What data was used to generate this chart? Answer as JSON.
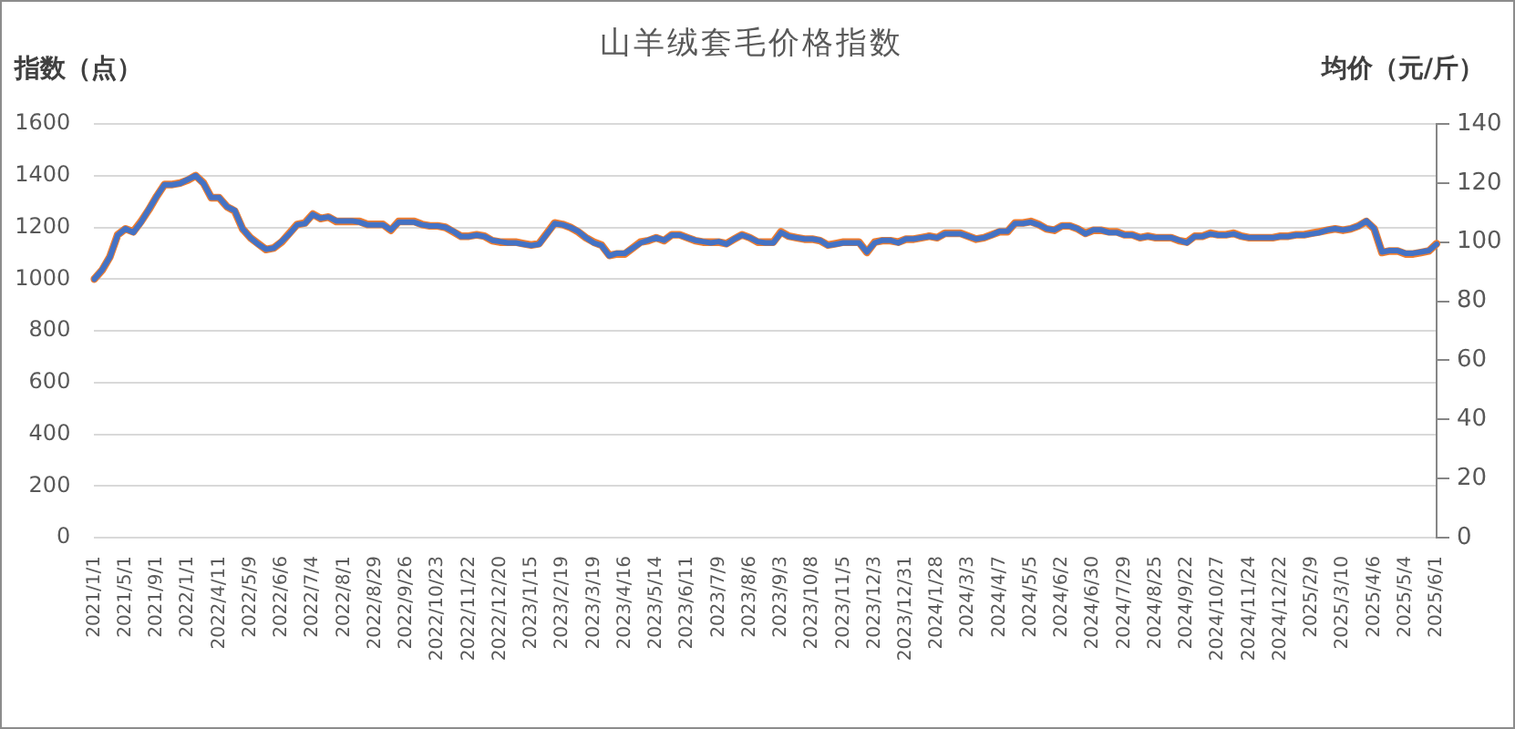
{
  "chart_data": {
    "type": "line",
    "title": "山羊绒套毛价格指数",
    "ylabel": "指数（点）",
    "y2label": "均价（元/斤）",
    "categories": [
      "2021/1/1",
      null,
      null,
      null,
      "2021/5/1",
      null,
      null,
      null,
      "2021/9/1",
      null,
      null,
      null,
      "2022/1/1",
      null,
      null,
      null,
      "2022/4/11",
      null,
      null,
      null,
      "2022/5/9",
      null,
      null,
      null,
      "2022/6/6",
      null,
      null,
      null,
      "2022/7/4",
      null,
      null,
      null,
      "2022/8/1",
      null,
      null,
      null,
      "2022/8/29",
      null,
      null,
      null,
      "2022/9/26",
      null,
      null,
      null,
      "2022/10/23",
      null,
      null,
      null,
      "2022/11/22",
      null,
      null,
      null,
      "2022/12/20",
      null,
      null,
      null,
      "2023/1/15",
      null,
      null,
      null,
      "2023/2/19",
      null,
      null,
      null,
      "2023/3/19",
      null,
      null,
      null,
      "2023/4/16",
      null,
      null,
      null,
      "2023/5/14",
      null,
      null,
      null,
      "2023/6/11",
      null,
      null,
      null,
      "2023/7/9",
      null,
      null,
      null,
      "2023/8/6",
      null,
      null,
      null,
      "2023/9/3",
      null,
      null,
      null,
      "2023/10/8",
      null,
      null,
      null,
      "2023/11/5",
      null,
      null,
      null,
      "2023/12/3",
      null,
      null,
      null,
      "2023/12/31",
      null,
      null,
      null,
      "2024/1/28",
      null,
      null,
      null,
      "2024/3/3",
      null,
      null,
      null,
      "2024/4/7",
      null,
      null,
      null,
      "2024/5/5",
      null,
      null,
      null,
      "2024/6/2",
      null,
      null,
      null,
      "2024/6/30",
      null,
      null,
      null,
      "2024/7/29",
      null,
      null,
      null,
      "2024/8/25",
      null,
      null,
      null,
      "2024/9/22",
      null,
      null,
      null,
      "2024/10/27",
      null,
      null,
      null,
      "2024/11/24",
      null,
      null,
      null,
      "2024/12/22",
      null,
      null,
      null,
      "2025/2/9",
      null,
      null,
      null,
      "2025/3/10",
      null,
      null,
      null,
      "2025/4/6",
      null,
      null,
      null,
      "2025/5/4",
      null,
      null,
      null,
      "2025/6/1"
    ],
    "series": [
      {
        "color": "#4472c4",
        "values": [
          1000,
          1035,
          1085,
          1170,
          1195,
          1180,
          1220,
          1270,
          1320,
          1365,
          1365,
          1370,
          1385,
          1400,
          1370,
          1315,
          1315,
          1280,
          1265,
          1195,
          1160,
          1135,
          1115,
          1120,
          1145,
          1175,
          1210,
          1215,
          1250,
          1235,
          1240,
          1225,
          1225,
          1225,
          1220,
          1210,
          1210,
          1210,
          1190,
          1220,
          1220,
          1220,
          1210,
          1205,
          1205,
          1200,
          1185,
          1165,
          1165,
          1170,
          1165,
          1150,
          1145,
          1140,
          1140,
          1135,
          1130,
          1135,
          1175,
          1215,
          1210,
          1200,
          1185,
          1160,
          1140,
          1130,
          1090,
          1100,
          1100,
          1120,
          1140,
          1150,
          1160,
          1150,
          1170,
          1170,
          1160,
          1150,
          1145,
          1140,
          1145,
          1135,
          1155,
          1170,
          1160,
          1145,
          1140,
          1140,
          1180,
          1165,
          1160,
          1155,
          1155,
          1150,
          1130,
          1135,
          1140,
          1140,
          1140,
          1105,
          1140,
          1150,
          1150,
          1140,
          1155,
          1155,
          1160,
          1165,
          1160,
          1175,
          1175,
          1175,
          1165,
          1155,
          1160,
          1170,
          1185,
          1185,
          1215,
          1215,
          1220,
          1210,
          1195,
          1190,
          1205,
          1205,
          1195,
          1175,
          1190,
          1190,
          1180,
          1180,
          1170,
          1170,
          1160,
          1165,
          1160,
          1160,
          1160,
          1150,
          1140,
          1165,
          1165,
          1175,
          1170,
          1170,
          1175,
          1165,
          1160,
          1160,
          1160,
          1160,
          1165,
          1165,
          1170,
          1170,
          1175,
          1180,
          1190,
          1195,
          1190,
          1195,
          1205,
          1225,
          1195,
          1105,
          1110,
          1110,
          1100,
          1100,
          1105,
          1110,
          1135
        ]
      },
      {
        "color": "#ed7d31",
        "axis": "y2",
        "values": [
          87.5,
          90.5,
          95,
          102.5,
          104.5,
          103.5,
          107,
          111,
          115.5,
          119.5,
          119.5,
          120,
          121,
          122.5,
          120,
          115,
          115,
          112,
          110.5,
          104.5,
          101.5,
          99.5,
          97.5,
          98,
          100,
          103,
          106,
          106.5,
          109.5,
          108,
          108.5,
          107,
          107,
          107,
          107,
          106,
          106,
          106,
          104,
          107,
          107,
          107,
          106,
          105.5,
          105.5,
          105,
          103.5,
          102,
          102,
          102.5,
          102,
          100.5,
          100,
          100,
          100,
          99.5,
          99,
          99.5,
          103,
          106.5,
          106,
          105,
          103.5,
          101.5,
          100,
          99,
          95.5,
          96,
          96,
          98,
          100,
          100.5,
          101.5,
          100.5,
          102.5,
          102.5,
          101.5,
          100.5,
          100,
          100,
          100,
          99.5,
          101,
          102.5,
          101.5,
          100,
          100,
          100,
          103.5,
          102,
          101.5,
          101,
          101,
          100.5,
          99,
          99.5,
          100,
          100,
          100,
          96.5,
          100,
          100.5,
          100.5,
          100,
          101,
          101,
          101.5,
          102,
          101.5,
          103,
          103,
          103,
          102,
          101,
          101.5,
          102.5,
          103.5,
          103.5,
          106.5,
          106.5,
          107,
          106,
          104.5,
          104,
          105.5,
          105.5,
          104.5,
          103,
          104,
          104,
          103.5,
          103.5,
          102.5,
          102.5,
          101.5,
          102,
          101.5,
          101.5,
          101.5,
          100.5,
          100,
          102,
          102,
          103,
          102.5,
          102.5,
          103,
          102,
          101.5,
          101.5,
          101.5,
          101.5,
          102,
          102,
          102.5,
          102.5,
          103,
          103.5,
          104,
          104.5,
          104,
          104.5,
          105.5,
          107,
          104.5,
          96.5,
          97,
          97,
          96,
          96,
          96.5,
          97,
          99.5
        ]
      }
    ],
    "ylim": [
      0,
      1600
    ],
    "yticks": [
      0,
      200,
      400,
      600,
      800,
      1000,
      1200,
      1400,
      1600
    ],
    "y2lim": [
      0,
      140
    ],
    "y2ticks": [
      0,
      20,
      40,
      60,
      80,
      100,
      120,
      140
    ],
    "grid": "y",
    "marker": "none",
    "line_style": "solid"
  }
}
